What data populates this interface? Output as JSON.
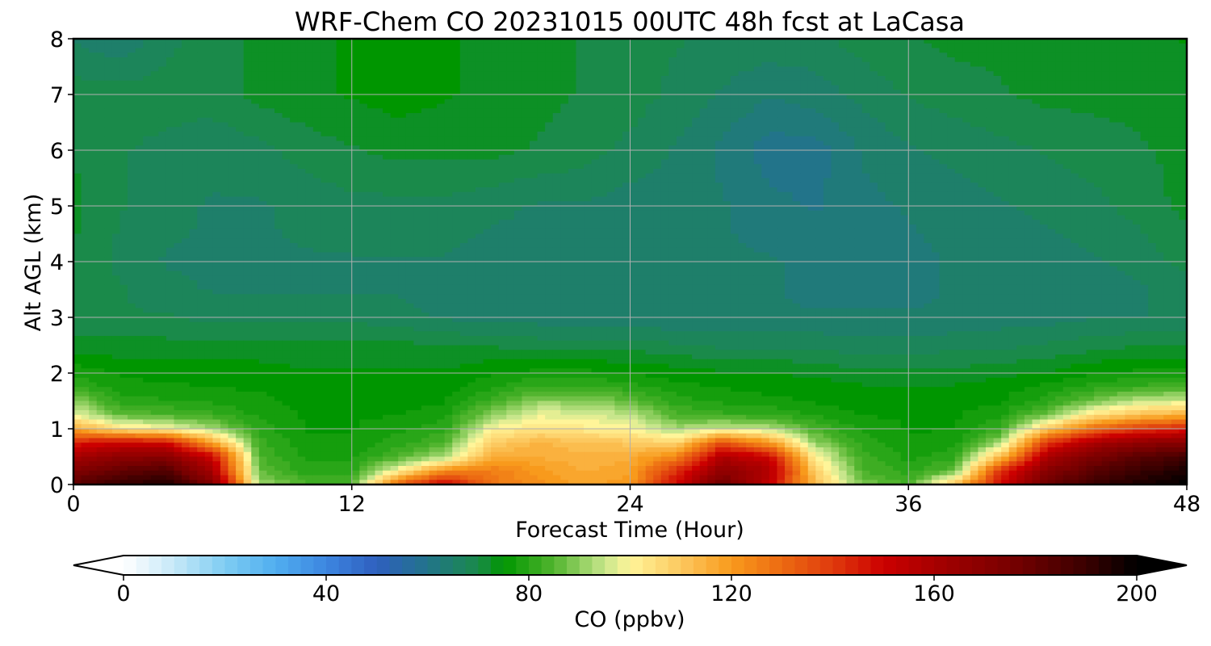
{
  "chart_data": {
    "type": "heatmap",
    "title": "WRF-Chem CO  20231015 00UTC 48h fcst at LaCasa",
    "xlabel": "Forecast Time (Hour)",
    "ylabel": "Alt AGL (km)",
    "xlim": [
      0,
      48
    ],
    "ylim": [
      0,
      8
    ],
    "xticks": [
      0,
      12,
      24,
      36,
      48
    ],
    "xtick_labels": [
      "0",
      "12",
      "24",
      "36",
      "48"
    ],
    "yticks": [
      0,
      1,
      2,
      3,
      4,
      5,
      6,
      7,
      8
    ],
    "ytick_labels": [
      "0",
      "1",
      "2",
      "3",
      "4",
      "5",
      "6",
      "7",
      "8"
    ],
    "grid": true,
    "colorbar": {
      "label": "CO  (ppbv)",
      "min": 0,
      "max": 200,
      "extend": "both",
      "ticks": [
        0,
        40,
        80,
        120,
        160,
        200
      ],
      "tick_labels": [
        "0",
        "40",
        "80",
        "120",
        "160",
        "200"
      ],
      "colormap": [
        [
          0,
          "#ffffff"
        ],
        [
          10,
          "#c6e8f8"
        ],
        [
          20,
          "#7fcdf2"
        ],
        [
          30,
          "#50aef0"
        ],
        [
          40,
          "#3d86e0"
        ],
        [
          50,
          "#2f5fbf"
        ],
        [
          60,
          "#22748a"
        ],
        [
          70,
          "#1a8a4a"
        ],
        [
          75,
          "#009600"
        ],
        [
          85,
          "#52b52f"
        ],
        [
          95,
          "#c8e68c"
        ],
        [
          100,
          "#fff599"
        ],
        [
          110,
          "#fcc85f"
        ],
        [
          120,
          "#f89a1c"
        ],
        [
          130,
          "#ec6a12"
        ],
        [
          140,
          "#df3a0d"
        ],
        [
          150,
          "#cc0000"
        ],
        [
          160,
          "#a70000"
        ],
        [
          175,
          "#780000"
        ],
        [
          190,
          "#3a0000"
        ],
        [
          200,
          "#000000"
        ]
      ]
    },
    "approx_field": {
      "description_units": "CO ppbv sampled at forecast hour (x) and altitude km (y)",
      "x": [
        0,
        2,
        4,
        6,
        8,
        10,
        12,
        14,
        16,
        18,
        20,
        22,
        24,
        26,
        28,
        30,
        32,
        34,
        36,
        38,
        40,
        42,
        44,
        46,
        48
      ],
      "y": [
        0,
        0.25,
        0.5,
        0.75,
        1.0,
        1.25,
        1.5,
        1.75,
        2.0,
        2.5,
        3.0,
        3.5,
        4.0,
        5.0,
        6.0,
        7.0,
        8.0
      ],
      "values": [
        [
          182,
          190,
          196,
          172,
          92,
          84,
          84,
          132,
          152,
          128,
          122,
          118,
          120,
          150,
          178,
          152,
          112,
          88,
          84,
          110,
          150,
          178,
          190,
          196,
          200
        ],
        [
          172,
          180,
          184,
          160,
          86,
          80,
          80,
          100,
          122,
          126,
          120,
          116,
          118,
          142,
          168,
          158,
          108,
          84,
          80,
          86,
          142,
          170,
          182,
          190,
          196
        ],
        [
          160,
          168,
          170,
          150,
          84,
          78,
          78,
          84,
          92,
          116,
          116,
          114,
          116,
          124,
          158,
          150,
          100,
          82,
          78,
          80,
          112,
          160,
          174,
          182,
          188
        ],
        [
          145,
          150,
          148,
          118,
          82,
          77,
          77,
          80,
          84,
          108,
          114,
          112,
          110,
          106,
          135,
          120,
          90,
          80,
          77,
          78,
          92,
          140,
          160,
          168,
          170
        ],
        [
          118,
          104,
          100,
          92,
          80,
          76,
          76,
          78,
          80,
          100,
          104,
          102,
          100,
          92,
          96,
          94,
          84,
          78,
          76,
          76,
          82,
          110,
          130,
          140,
          145
        ],
        [
          98,
          86,
          84,
          82,
          78,
          76,
          76,
          76,
          78,
          90,
          98,
          97,
          94,
          84,
          82,
          81,
          78,
          76,
          76,
          76,
          78,
          88,
          104,
          112,
          116
        ],
        [
          90,
          80,
          79,
          78,
          77,
          75,
          75,
          75,
          76,
          82,
          90,
          90,
          86,
          80,
          78,
          77,
          76,
          75,
          75,
          75,
          76,
          80,
          88,
          94,
          96
        ],
        [
          82,
          77,
          77,
          76,
          76,
          75,
          75,
          75,
          75,
          78,
          82,
          82,
          80,
          77,
          76,
          75,
          75,
          74,
          74,
          74,
          75,
          77,
          80,
          82,
          83
        ],
        [
          78,
          76,
          75,
          75,
          75,
          74,
          74,
          74,
          74,
          76,
          77,
          77,
          76,
          75,
          74,
          74,
          73,
          72,
          72,
          72,
          73,
          74,
          76,
          77,
          77
        ],
        [
          72,
          72,
          72,
          72,
          72,
          72,
          72,
          72,
          71,
          71,
          70,
          70,
          70,
          69,
          68,
          68,
          68,
          67,
          67,
          68,
          68,
          69,
          70,
          71,
          71
        ],
        [
          70,
          69,
          69,
          68,
          68,
          68,
          68,
          67,
          66,
          65,
          65,
          64,
          64,
          64,
          64,
          64,
          64,
          64,
          64,
          64,
          65,
          65,
          66,
          66,
          67
        ],
        [
          71,
          69,
          67,
          66,
          66,
          66,
          66,
          66,
          65,
          64,
          64,
          64,
          64,
          64,
          64,
          64,
          63,
          63,
          63,
          64,
          64,
          64,
          65,
          66,
          67
        ],
        [
          71,
          68,
          66,
          66,
          66,
          66,
          66,
          66,
          66,
          65,
          65,
          65,
          65,
          65,
          64,
          64,
          63,
          63,
          63,
          64,
          64,
          65,
          66,
          67,
          70
        ],
        [
          72,
          69,
          67,
          66,
          66,
          67,
          68,
          68,
          68,
          67,
          66,
          66,
          65,
          65,
          64,
          62,
          61,
          63,
          64,
          65,
          66,
          67,
          68,
          70,
          72
        ],
        [
          71,
          69,
          68,
          67,
          68,
          70,
          71,
          72,
          72,
          72,
          71,
          70,
          68,
          66,
          63,
          60,
          60,
          64,
          66,
          67,
          68,
          69,
          70,
          71,
          72
        ],
        [
          70,
          70,
          70,
          70,
          72,
          73,
          74,
          75,
          74,
          73,
          72,
          71,
          70,
          68,
          66,
          64,
          65,
          67,
          69,
          70,
          71,
          72,
          72,
          72,
          72
        ],
        [
          66,
          64,
          68,
          70,
          72,
          73,
          74,
          75,
          74,
          73,
          72,
          71,
          70,
          69,
          68,
          68,
          68,
          70,
          71,
          72,
          72,
          72,
          72,
          73,
          74
        ]
      ]
    }
  }
}
